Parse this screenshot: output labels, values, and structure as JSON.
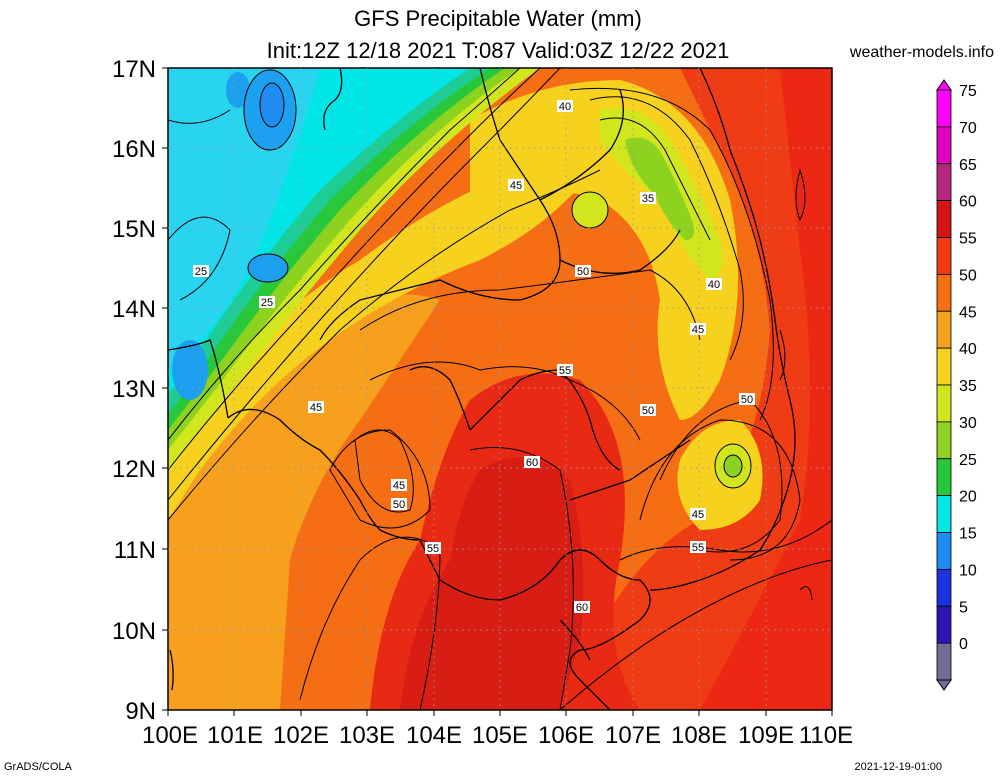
{
  "header": {
    "title": "GFS Precipitable Water (mm)",
    "subtitle": "Init:12Z 12/18 2021 T:087 Valid:03Z 12/22 2021",
    "brand": "weather-models.info"
  },
  "footer": {
    "left": "GrADS/COLA",
    "right": "2021-12-19-01:00"
  },
  "map": {
    "lat_labels": [
      "17N",
      "16N",
      "15N",
      "14N",
      "13N",
      "12N",
      "11N",
      "10N",
      "9N"
    ],
    "lon_labels": [
      "100E",
      "101E",
      "102E",
      "103E",
      "104E",
      "105E",
      "106E",
      "107E",
      "108E",
      "109E",
      "110E"
    ]
  },
  "colorbar": {
    "levels": [
      "75",
      "70",
      "65",
      "60",
      "55",
      "50",
      "45",
      "40",
      "35",
      "30",
      "25",
      "20",
      "15",
      "10",
      "5",
      "0"
    ],
    "colors": [
      "#ff00ff",
      "#e000c0",
      "#b4287e",
      "#d41414",
      "#f03c14",
      "#f66e14",
      "#f6a01e",
      "#f6d21e",
      "#d2e61e",
      "#8cd21e",
      "#28c83c",
      "#00e6e6",
      "#1e8cf0",
      "#1e32dc",
      "#3214b4",
      "#6e6e96"
    ]
  },
  "contour_labels": [
    {
      "text": "40"
    },
    {
      "text": "45"
    },
    {
      "text": "35"
    },
    {
      "text": "25"
    },
    {
      "text": "25"
    },
    {
      "text": "50"
    },
    {
      "text": "40"
    },
    {
      "text": "45"
    },
    {
      "text": "55"
    },
    {
      "text": "45"
    },
    {
      "text": "50"
    },
    {
      "text": "50"
    },
    {
      "text": "45"
    },
    {
      "text": "50"
    },
    {
      "text": "60"
    },
    {
      "text": "55"
    },
    {
      "text": "45"
    },
    {
      "text": "55"
    },
    {
      "text": "60"
    }
  ]
}
